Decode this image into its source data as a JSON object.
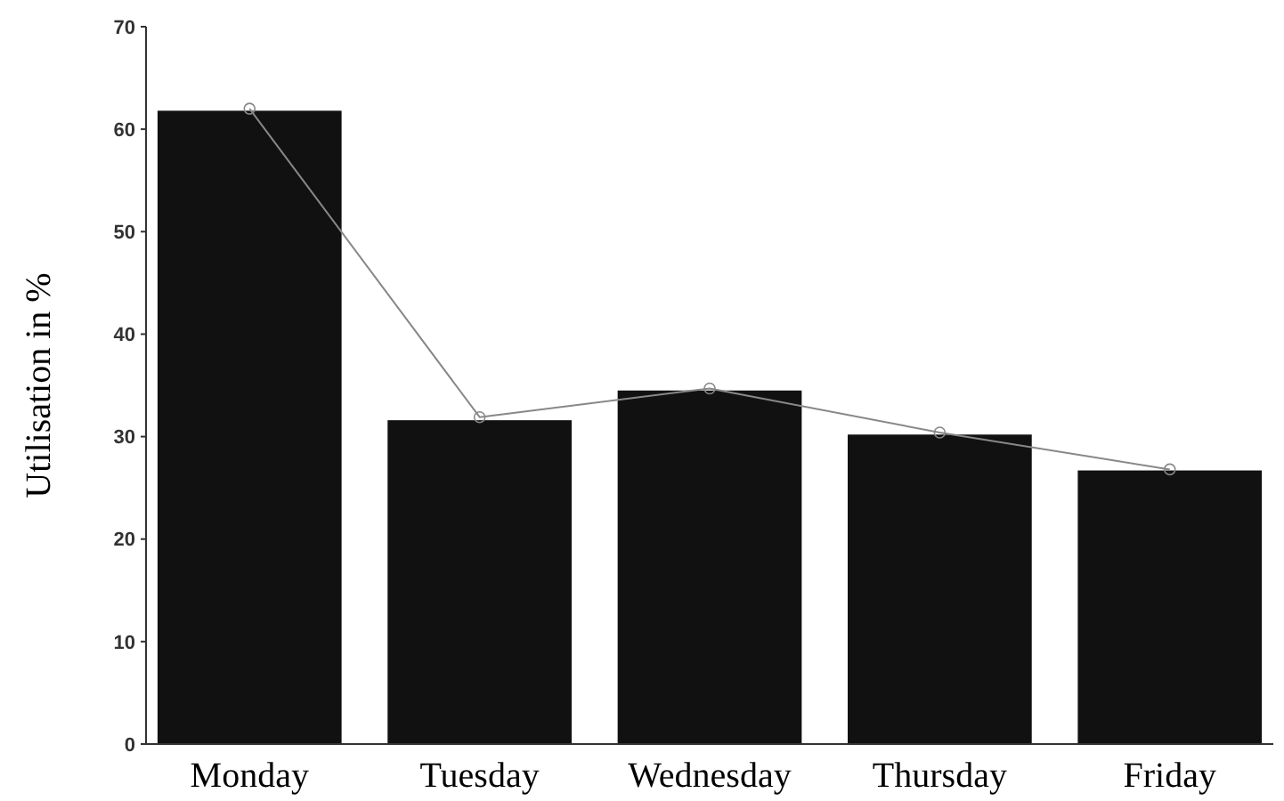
{
  "chart_data": {
    "type": "bar",
    "ylabel": "Utilisation in %",
    "categories": [
      "Monday",
      "Tuesday",
      "Wednesday",
      "Thursday",
      "Friday"
    ],
    "series": [
      {
        "color": "#111111",
        "values": [
          61.8,
          31.6,
          34.5,
          30.2,
          26.7
        ]
      },
      {
        "type": "line",
        "color": "#888888",
        "values": [
          62,
          31.9,
          34.7,
          30.4,
          26.8
        ],
        "marker": "circle"
      }
    ],
    "ylim": [
      0,
      70
    ],
    "yticks": [
      0,
      10,
      20,
      30,
      40,
      50,
      60,
      70
    ]
  }
}
